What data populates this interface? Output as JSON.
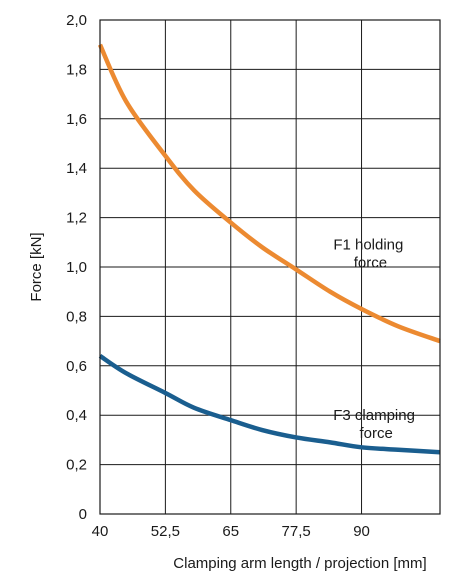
{
  "chart_data": {
    "type": "line",
    "xlabel": "Clamping arm length / projection [mm]",
    "ylabel": "Force [kN]",
    "xlim": [
      40,
      105
    ],
    "ylim": [
      0,
      2.0
    ],
    "grid": true,
    "x_ticks": [
      {
        "value": 40,
        "label": "40"
      },
      {
        "value": 52.5,
        "label": "52,5"
      },
      {
        "value": 65,
        "label": "65"
      },
      {
        "value": 77.5,
        "label": "77,5"
      },
      {
        "value": 90,
        "label": "90"
      }
    ],
    "y_ticks": [
      {
        "value": 0,
        "label": "0"
      },
      {
        "value": 0.2,
        "label": "0,2"
      },
      {
        "value": 0.4,
        "label": "0,4"
      },
      {
        "value": 0.6,
        "label": "0,6"
      },
      {
        "value": 0.8,
        "label": "0,8"
      },
      {
        "value": 1.0,
        "label": "1,0"
      },
      {
        "value": 1.2,
        "label": "1,2"
      },
      {
        "value": 1.4,
        "label": "1,4"
      },
      {
        "value": 1.6,
        "label": "1,6"
      },
      {
        "value": 1.8,
        "label": "1,8"
      },
      {
        "value": 2.0,
        "label": "2,0"
      }
    ],
    "x_extra_gridlines": [
      105
    ],
    "series": [
      {
        "color": "#ec8a31",
        "x": [
          40,
          45,
          52.5,
          58,
          65,
          71,
          77.5,
          84,
          90,
          97,
          105
        ],
        "values": [
          1.9,
          1.67,
          1.45,
          1.31,
          1.18,
          1.08,
          0.99,
          0.9,
          0.83,
          0.76,
          0.7
        ]
      },
      {
        "color": "#1a5e8f",
        "x": [
          40,
          45,
          52.5,
          58,
          65,
          71,
          77.5,
          84,
          90,
          97,
          105
        ],
        "values": [
          0.64,
          0.57,
          0.49,
          0.43,
          0.38,
          0.34,
          0.31,
          0.29,
          0.27,
          0.26,
          0.25
        ]
      }
    ],
    "annotations": [
      {
        "id": "f1",
        "lines": [
          "F1 holding",
          "force"
        ]
      },
      {
        "id": "f3",
        "lines": [
          "F3 clamping",
          "force"
        ]
      }
    ]
  }
}
